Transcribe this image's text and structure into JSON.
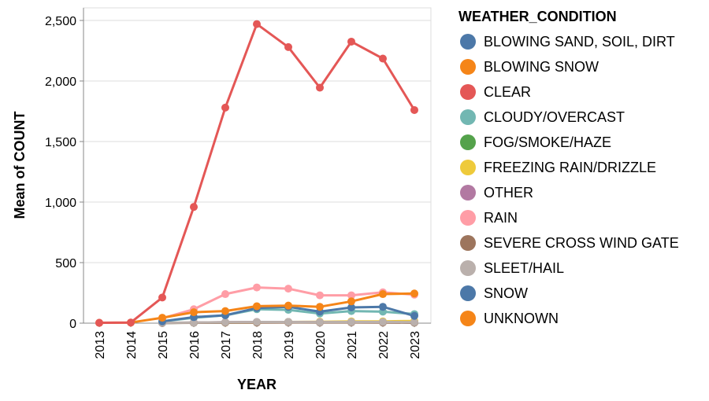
{
  "chart_data": {
    "type": "line",
    "xlabel": "YEAR",
    "ylabel": "Mean of COUNT",
    "ylim": [
      0,
      2500
    ],
    "yticks": [
      0,
      500,
      1000,
      1500,
      2000,
      2500
    ],
    "ytick_labels": [
      "0",
      "500",
      "1,000",
      "1,500",
      "2,000",
      "2,500"
    ],
    "categories": [
      "2013",
      "2014",
      "2015",
      "2016",
      "2017",
      "2018",
      "2019",
      "2020",
      "2021",
      "2022",
      "2023"
    ],
    "grid": true,
    "legend_position": "right",
    "legend_title": "WEATHER_CONDITION",
    "series": [
      {
        "name": "BLOWING SAND, SOIL, DIRT",
        "color": "#4c78a8",
        "values": [
          null,
          null,
          null,
          null,
          null,
          null,
          null,
          null,
          null,
          null,
          null
        ]
      },
      {
        "name": "BLOWING SNOW",
        "color": "#f58518",
        "values": [
          null,
          null,
          null,
          null,
          null,
          null,
          null,
          null,
          null,
          null,
          null
        ]
      },
      {
        "name": "CLEAR",
        "color": "#e45756",
        "values": [
          3,
          5,
          212,
          960,
          1780,
          2470,
          2280,
          1945,
          2325,
          2185,
          1760
        ]
      },
      {
        "name": "CLOUDY/OVERCAST",
        "color": "#72b7b2",
        "values": [
          null,
          null,
          15,
          45,
          65,
          115,
          110,
          80,
          100,
          95,
          75
        ]
      },
      {
        "name": "FOG/SMOKE/HAZE",
        "color": "#54a24b",
        "values": [
          null,
          null,
          2,
          4,
          6,
          8,
          10,
          8,
          8,
          8,
          5
        ]
      },
      {
        "name": "FREEZING RAIN/DRIZZLE",
        "color": "#eeca3b",
        "values": [
          null,
          null,
          null,
          null,
          5,
          6,
          10,
          12,
          15,
          15,
          18
        ]
      },
      {
        "name": "OTHER",
        "color": "#b279a2",
        "values": [
          null,
          null,
          2,
          5,
          8,
          10,
          10,
          8,
          8,
          8,
          5
        ]
      },
      {
        "name": "RAIN",
        "color": "#ff9da6",
        "values": [
          null,
          null,
          40,
          115,
          240,
          295,
          285,
          230,
          230,
          255,
          235
        ]
      },
      {
        "name": "SEVERE CROSS WIND GATE",
        "color": "#9d755d",
        "values": [
          null,
          null,
          2,
          3,
          4,
          5,
          6,
          5,
          6,
          5,
          4
        ]
      },
      {
        "name": "SLEET/HAIL",
        "color": "#bab0ac",
        "values": [
          null,
          null,
          3,
          5,
          8,
          10,
          10,
          8,
          10,
          10,
          8
        ]
      },
      {
        "name": "SNOW",
        "color": "#4c78a8",
        "values": [
          null,
          null,
          15,
          50,
          65,
          125,
          135,
          95,
          130,
          135,
          60
        ]
      },
      {
        "name": "UNKNOWN",
        "color": "#f58518",
        "values": [
          3,
          5,
          45,
          90,
          100,
          140,
          145,
          135,
          180,
          240,
          245
        ]
      }
    ]
  }
}
